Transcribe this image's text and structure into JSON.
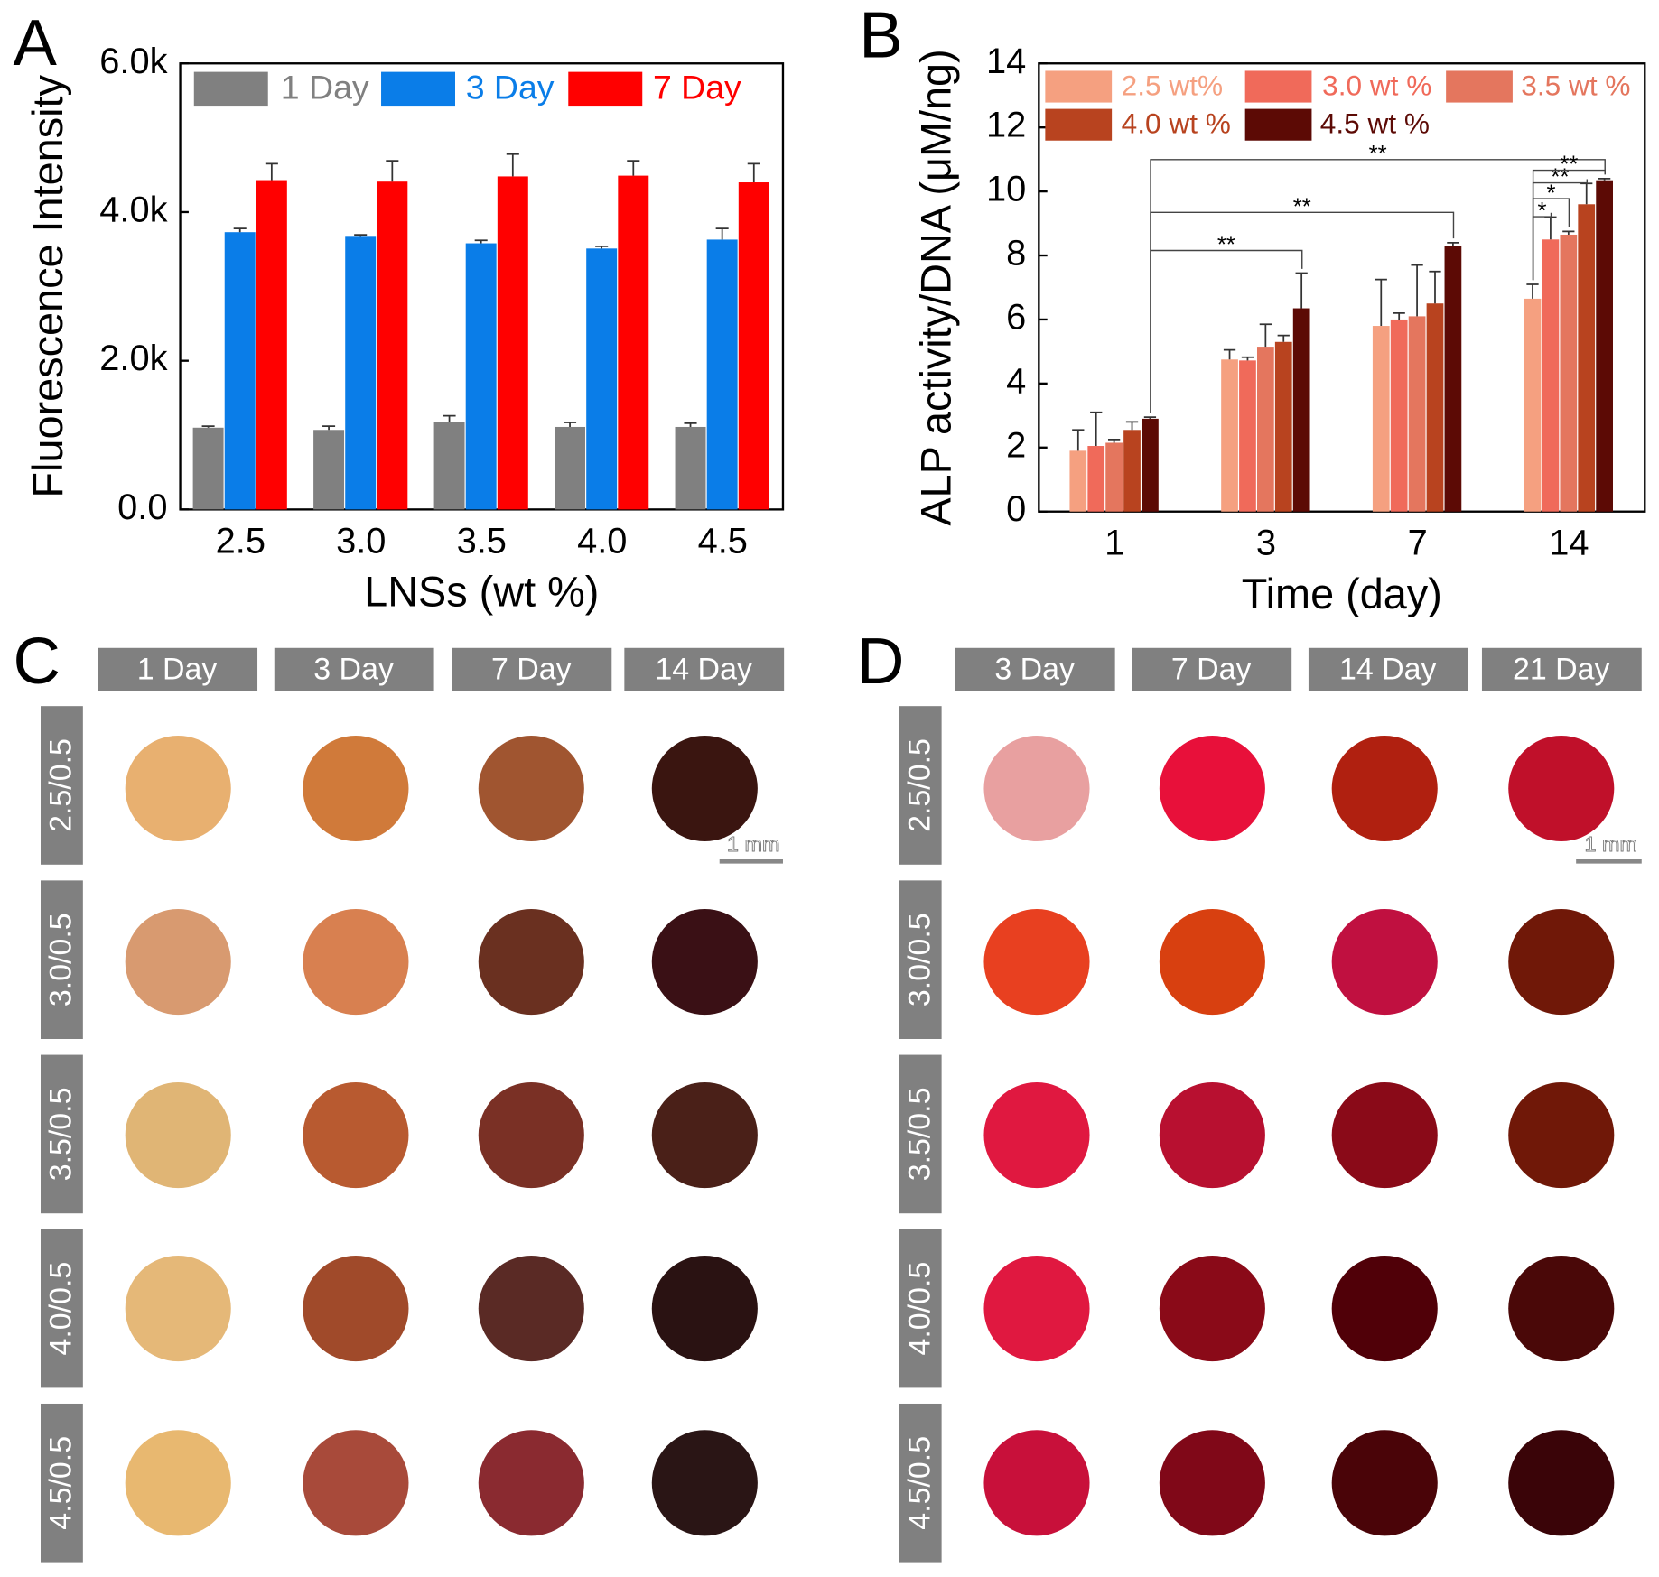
{
  "chart_data": [
    {
      "type": "bar",
      "panel": "A",
      "x_label": "LNSs (wt %)",
      "y_label": "Fluorescence Intensity",
      "categories": [
        "2.5",
        "3.0",
        "3.5",
        "4.0",
        "4.5"
      ],
      "ylim": [
        0,
        6000
      ],
      "yticks": [
        {
          "value": 0,
          "label": "0.0"
        },
        {
          "value": 2000,
          "label": "2.0k"
        },
        {
          "value": 4000,
          "label": "4.0k"
        },
        {
          "value": 6000,
          "label": "6.0k"
        }
      ],
      "series": [
        {
          "name": "1 Day",
          "color": "#808080",
          "values": [
            1100,
            1070,
            1180,
            1110,
            1110
          ],
          "errors": [
            20,
            50,
            80,
            60,
            50
          ]
        },
        {
          "name": "3 Day",
          "color": "#0a7de8",
          "values": [
            3730,
            3680,
            3580,
            3510,
            3630
          ],
          "errors": [
            50,
            15,
            40,
            30,
            150
          ]
        },
        {
          "name": "7 Day",
          "color": "#ff0000",
          "values": [
            4430,
            4410,
            4480,
            4490,
            4400
          ],
          "errors": [
            220,
            280,
            300,
            200,
            250
          ]
        }
      ]
    },
    {
      "type": "bar",
      "panel": "B",
      "x_label": "Time (day)",
      "y_label": "ALP activity/DNA (μM/ng)",
      "categories": [
        "1",
        "3",
        "7",
        "14"
      ],
      "ylim": [
        0,
        14
      ],
      "yticks": [
        0,
        2,
        4,
        6,
        8,
        10,
        12,
        14
      ],
      "series": [
        {
          "name": "2.5 wt%",
          "color": "#f5a080",
          "values": [
            1.9,
            4.75,
            5.8,
            6.65
          ],
          "errors": [
            0.65,
            0.3,
            1.45,
            0.45
          ]
        },
        {
          "name": "3.0 wt %",
          "color": "#f06a5a",
          "values": [
            2.05,
            4.72,
            6.0,
            8.5
          ],
          "errors": [
            1.05,
            0.1,
            0.2,
            0.7
          ]
        },
        {
          "name": "3.5 wt %",
          "color": "#e4765e",
          "values": [
            2.15,
            5.15,
            6.1,
            8.65
          ],
          "errors": [
            0.1,
            0.7,
            1.6,
            0.1
          ]
        },
        {
          "name": "4.0 wt %",
          "color": "#b8431f",
          "values": [
            2.55,
            5.3,
            6.5,
            9.6
          ],
          "errors": [
            0.25,
            0.2,
            1.0,
            0.65
          ]
        },
        {
          "name": "4.5 wt %",
          "color": "#5c0a05",
          "values": [
            2.9,
            6.35,
            8.3,
            10.35
          ],
          "errors": [
            0.05,
            1.1,
            0.1,
            0.05
          ]
        }
      ],
      "annotations": [
        "**",
        "**",
        "**",
        "*",
        "*",
        "**",
        "**"
      ]
    }
  ],
  "image_grids": [
    {
      "panel": "C",
      "columns": [
        "1 Day",
        "3 Day",
        "7 Day",
        "14 Day"
      ],
      "rows": [
        "2.5/0.5",
        "3.0/0.5",
        "3.5/0.5",
        "4.0/0.5",
        "4.5/0.5"
      ],
      "scale_bar": "1 mm",
      "colors": [
        [
          "#e8b070",
          "#d07a3a",
          "#a05530",
          "#3a1510"
        ],
        [
          "#d89a70",
          "#d88050",
          "#6a3020",
          "#3a1015"
        ],
        [
          "#e0b575",
          "#b85a30",
          "#7a3025",
          "#4a2018"
        ],
        [
          "#e5b878",
          "#a04a2a",
          "#5a2a25",
          "#2a1212"
        ],
        [
          "#e8b870",
          "#a84a3a",
          "#8a2a30",
          "#2a1515"
        ]
      ]
    },
    {
      "panel": "D",
      "columns": [
        "3 Day",
        "7 Day",
        "14 Day",
        "21 Day"
      ],
      "rows": [
        "2.5/0.5",
        "3.0/0.5",
        "3.5/0.5",
        "4.0/0.5",
        "4.5/0.5"
      ],
      "scale_bar": "1 mm",
      "colors": [
        [
          "#e8a0a0",
          "#e8103a",
          "#b02010",
          "#c0102a"
        ],
        [
          "#e84020",
          "#d84010",
          "#c01040",
          "#701808"
        ],
        [
          "#e01840",
          "#b81030",
          "#8a0a18",
          "#701808"
        ],
        [
          "#e01840",
          "#8a0a18",
          "#500008",
          "#4a0808"
        ],
        [
          "#c8103a",
          "#800818",
          "#4a0408",
          "#3a0408"
        ]
      ]
    }
  ]
}
